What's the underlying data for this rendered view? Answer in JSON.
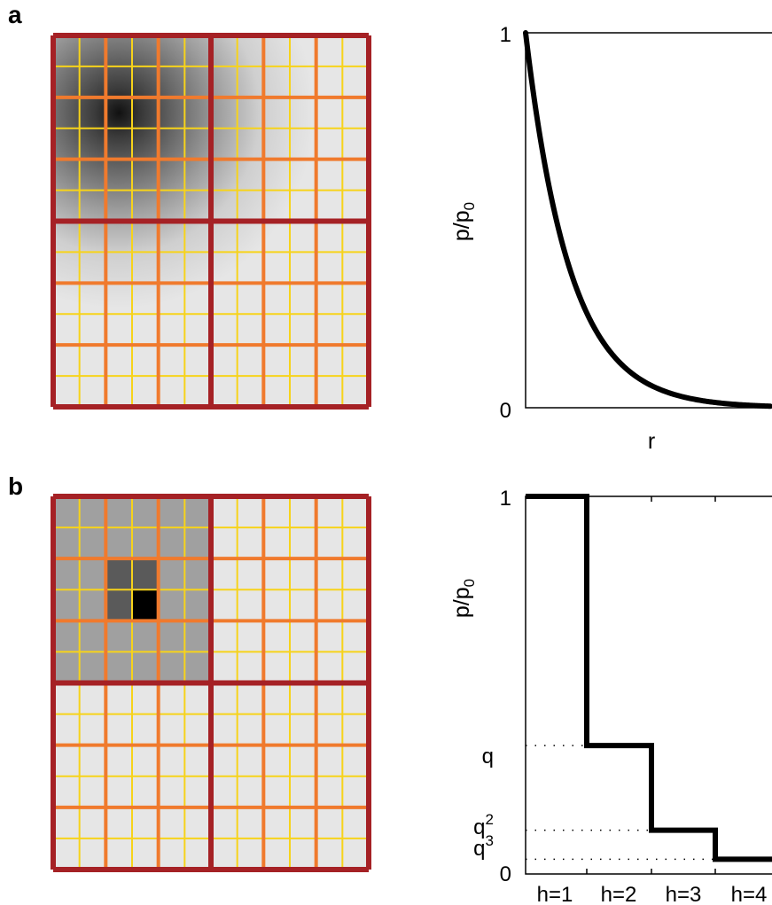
{
  "panels": [
    {
      "label": "a",
      "heatmap": {
        "type": "continuous",
        "grid_levels": [
          {
            "divisions": 2,
            "color": "#a52125"
          },
          {
            "divisions": 6,
            "color": "#f07a2d"
          },
          {
            "divisions": 12,
            "color": "#f7d31a"
          }
        ],
        "peak_cell": {
          "col": 3,
          "row": 3
        },
        "background": "#e6e6e6"
      },
      "chart_data": {
        "type": "line",
        "xlabel": "r",
        "ylabel": "p/p",
        "ylabel_sub": "0",
        "ytick_labels": [
          "1",
          "0"
        ],
        "ylim": [
          0,
          1
        ],
        "function": "exponential_decay",
        "decay_rate": 5.5,
        "x_range": [
          0,
          1
        ]
      }
    },
    {
      "label": "b",
      "heatmap": {
        "type": "hierarchical",
        "grid_levels": [
          {
            "divisions": 2,
            "color": "#a52125"
          },
          {
            "divisions": 6,
            "color": "#f07a2d"
          },
          {
            "divisions": 12,
            "color": "#f7d31a"
          }
        ],
        "level_fills": [
          "#e6e6e6",
          "#a0a0a0",
          "#5a5a5a",
          "#000000"
        ],
        "background": "#e6e6e6"
      },
      "chart_data": {
        "type": "line",
        "step": true,
        "ylabel": "p/p",
        "ylabel_sub": "0",
        "ytick_labels": [
          "1",
          "q",
          "q",
          "q",
          "0"
        ],
        "ytick_sups": [
          "",
          "",
          "2",
          "3",
          ""
        ],
        "xtick_labels": [
          "h=1",
          "h=2",
          "h=3",
          "h=4"
        ],
        "q": 0.34,
        "values": [
          1,
          0.34,
          0.116,
          0.039
        ],
        "ylim": [
          0,
          1
        ]
      }
    }
  ]
}
